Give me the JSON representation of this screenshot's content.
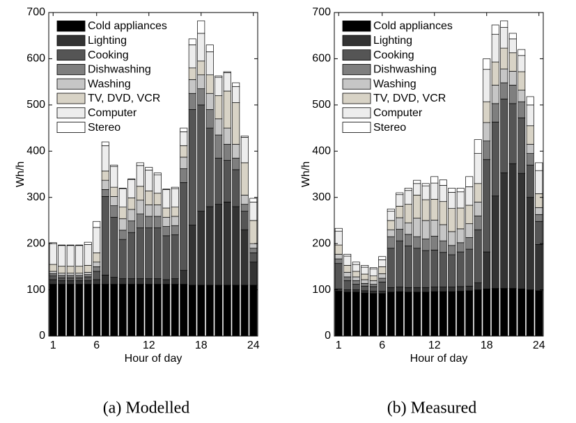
{
  "chart_data": [
    {
      "type": "bar",
      "stacked": true,
      "caption": "(a) Modelled",
      "xlabel": "Hour of day",
      "ylabel": "Wh/h",
      "x": [
        1,
        2,
        3,
        4,
        5,
        6,
        7,
        8,
        9,
        10,
        11,
        12,
        13,
        14,
        15,
        16,
        17,
        18,
        19,
        20,
        21,
        22,
        23,
        24
      ],
      "xlim": [
        0.5,
        24.5
      ],
      "xticks": [
        1,
        6,
        12,
        18,
        24
      ],
      "ylim": [
        0,
        700
      ],
      "yticks": [
        0,
        100,
        200,
        300,
        400,
        500,
        600,
        700
      ],
      "legend": "upper left",
      "series": [
        {
          "name": "Cold appliances",
          "color": "#000000",
          "values": [
            112,
            112,
            112,
            112,
            112,
            112,
            112,
            112,
            112,
            112,
            112,
            112,
            112,
            112,
            112,
            112,
            110,
            110,
            110,
            110,
            110,
            110,
            110,
            110
          ]
        },
        {
          "name": "Lighting",
          "color": "#333333",
          "values": [
            10,
            8,
            8,
            8,
            8,
            10,
            20,
            15,
            12,
            12,
            12,
            12,
            12,
            10,
            12,
            30,
            130,
            160,
            170,
            175,
            180,
            170,
            120,
            50
          ]
        },
        {
          "name": "Cooking",
          "color": "#555555",
          "values": [
            8,
            6,
            6,
            6,
            8,
            18,
            170,
            130,
            85,
            100,
            110,
            110,
            110,
            95,
            95,
            190,
            250,
            230,
            170,
            100,
            90,
            80,
            40,
            20
          ]
        },
        {
          "name": "Dishwashing",
          "color": "#7f7f7f",
          "values": [
            5,
            5,
            5,
            5,
            5,
            10,
            15,
            25,
            20,
            25,
            30,
            25,
            25,
            20,
            20,
            30,
            35,
            35,
            40,
            50,
            35,
            25,
            15,
            10
          ]
        },
        {
          "name": "Washing",
          "color": "#c6c6c6",
          "values": [
            5,
            5,
            5,
            5,
            5,
            10,
            20,
            20,
            25,
            25,
            30,
            25,
            25,
            20,
            20,
            25,
            30,
            30,
            35,
            35,
            35,
            30,
            20,
            10
          ]
        },
        {
          "name": "TV, DVD, VCR",
          "color": "#d8d3c6",
          "values": [
            15,
            15,
            15,
            15,
            15,
            20,
            20,
            20,
            25,
            25,
            30,
            30,
            25,
            20,
            20,
            25,
            25,
            30,
            40,
            50,
            80,
            90,
            70,
            50
          ]
        },
        {
          "name": "Computer",
          "color": "#ededed",
          "values": [
            45,
            45,
            45,
            45,
            45,
            55,
            55,
            45,
            40,
            40,
            45,
            45,
            40,
            40,
            40,
            30,
            50,
            60,
            50,
            40,
            40,
            35,
            55,
            40
          ]
        },
        {
          "name": "Stereo",
          "color": "#ffffff",
          "values": [
            2,
            1,
            1,
            1,
            5,
            13,
            8,
            3,
            1,
            1,
            6,
            6,
            4,
            1,
            3,
            8,
            13,
            27,
            15,
            3,
            2,
            8,
            3,
            8
          ]
        }
      ]
    },
    {
      "type": "bar",
      "stacked": true,
      "caption": "(b) Measured",
      "xlabel": "Hour of day",
      "ylabel": "Wh/h",
      "x": [
        1,
        2,
        3,
        4,
        5,
        6,
        7,
        8,
        9,
        10,
        11,
        12,
        13,
        14,
        15,
        16,
        17,
        18,
        19,
        20,
        21,
        22,
        23,
        24
      ],
      "xlim": [
        0.5,
        24.5
      ],
      "xticks": [
        1,
        6,
        12,
        18,
        24
      ],
      "ylim": [
        0,
        700
      ],
      "yticks": [
        0,
        100,
        200,
        300,
        400,
        500,
        600,
        700
      ],
      "legend": "upper left",
      "series": [
        {
          "name": "Cold appliances",
          "color": "#000000",
          "values": [
            97,
            95,
            95,
            93,
            92,
            92,
            95,
            96,
            95,
            95,
            95,
            96,
            96,
            96,
            97,
            98,
            100,
            102,
            103,
            103,
            103,
            102,
            100,
            98
          ]
        },
        {
          "name": "Lighting",
          "color": "#333333",
          "values": [
            5,
            5,
            5,
            5,
            5,
            5,
            10,
            10,
            10,
            10,
            10,
            10,
            10,
            10,
            10,
            10,
            15,
            80,
            200,
            250,
            270,
            250,
            200,
            100
          ]
        },
        {
          "name": "Cooking",
          "color": "#555555",
          "values": [
            55,
            20,
            12,
            10,
            10,
            20,
            85,
            100,
            90,
            85,
            80,
            80,
            75,
            70,
            75,
            80,
            115,
            200,
            160,
            160,
            130,
            120,
            70,
            50
          ]
        },
        {
          "name": "Dishwashing",
          "color": "#7f7f7f",
          "values": [
            10,
            8,
            8,
            6,
            5,
            8,
            25,
            25,
            25,
            25,
            25,
            30,
            25,
            20,
            20,
            25,
            30,
            40,
            40,
            35,
            40,
            35,
            25,
            15
          ]
        },
        {
          "name": "Washing",
          "color": "#c6c6c6",
          "values": [
            10,
            10,
            8,
            8,
            8,
            10,
            15,
            25,
            25,
            40,
            40,
            35,
            35,
            30,
            30,
            30,
            30,
            40,
            40,
            30,
            30,
            25,
            20,
            15
          ]
        },
        {
          "name": "TV, DVD, VCR",
          "color": "#d8d3c6",
          "values": [
            20,
            15,
            12,
            12,
            10,
            15,
            20,
            25,
            40,
            50,
            45,
            45,
            50,
            50,
            45,
            40,
            40,
            45,
            50,
            45,
            40,
            40,
            40,
            30
          ]
        },
        {
          "name": "Computer",
          "color": "#ededed",
          "values": [
            30,
            20,
            15,
            15,
            15,
            15,
            20,
            25,
            30,
            25,
            30,
            35,
            35,
            35,
            35,
            40,
            65,
            70,
            60,
            45,
            30,
            35,
            45,
            50
          ]
        },
        {
          "name": "Stereo",
          "color": "#ffffff",
          "values": [
            6,
            4,
            5,
            4,
            3,
            7,
            5,
            4,
            5,
            7,
            5,
            14,
            12,
            9,
            8,
            22,
            30,
            23,
            20,
            14,
            12,
            13,
            18,
            17
          ]
        }
      ]
    }
  ]
}
